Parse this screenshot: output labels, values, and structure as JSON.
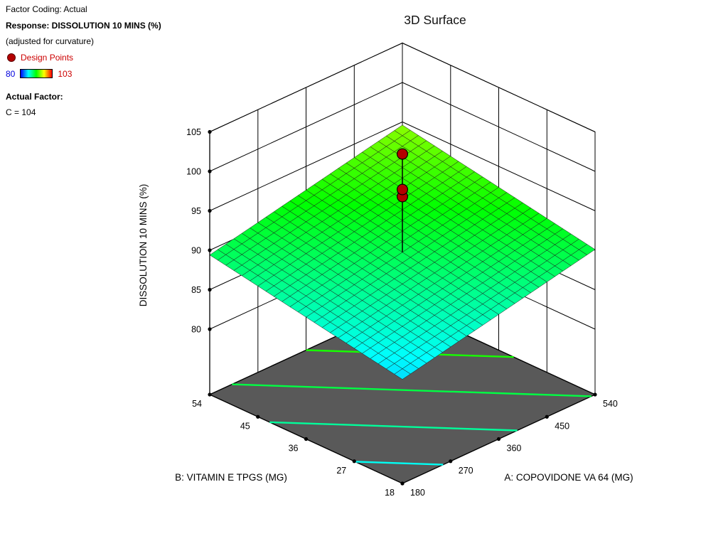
{
  "title": "3D Surface",
  "info_panel": {
    "factor_coding": "Factor Coding: Actual",
    "response": "Response: DISSOLUTION 10 MINS (%)",
    "adjusted_note": "(adjusted for curvature)",
    "design_points_label": "Design Points",
    "scale_min": "80",
    "scale_max": "103",
    "actual_factor_label": "Actual Factor:",
    "actual_factor_value": "C = 104"
  },
  "chart_data": {
    "type": "3d_surface",
    "title": "3D Surface",
    "x_axis": {
      "label": "A: COPOVIDONE VA 64 (MG)",
      "range": [
        180,
        540
      ],
      "ticks": [
        180,
        270,
        360,
        450,
        540
      ]
    },
    "y_axis": {
      "label": "B: VITAMIN E TPGS (MG)",
      "range": [
        18,
        54
      ],
      "ticks": [
        18,
        27,
        36,
        45,
        54
      ]
    },
    "z_axis": {
      "label": "DISSOLUTION 10 MINS (%)",
      "range": [
        80,
        105
      ],
      "ticks": [
        80,
        85,
        90,
        95,
        100,
        105
      ]
    },
    "color_scale": {
      "min": 80,
      "max": 103,
      "colors": [
        "#0000ff",
        "#00ffff",
        "#00ff00",
        "#ffff00",
        "#ff0000"
      ]
    },
    "surface_corner_values": {
      "A180_B18": 84.9,
      "A540_B18": 90.1,
      "A180_B54": 89.4,
      "A540_B54": 94.6
    },
    "design_points": [
      {
        "A": 360,
        "B": 36,
        "value": 96.8
      },
      {
        "A": 360,
        "B": 36,
        "value": 97.7
      },
      {
        "A": 360,
        "B": 36,
        "value": 102.2
      }
    ],
    "floor_contour_levels": [
      86,
      88,
      90,
      92,
      94
    ],
    "floor_color": "#595959",
    "design_point_color": "#b40000",
    "mesh_divisions": 24,
    "actual_factor": "C = 104"
  }
}
